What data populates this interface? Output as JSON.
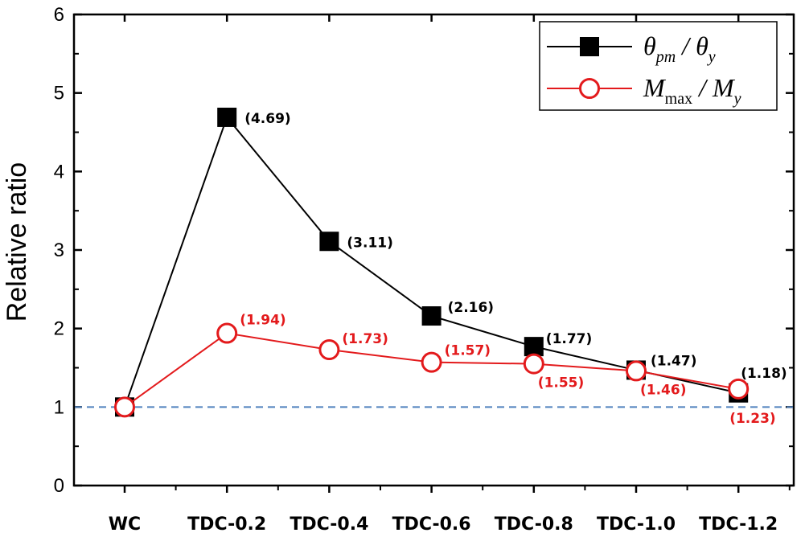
{
  "chart_data": {
    "type": "line",
    "title": "",
    "xlabel": "",
    "ylabel": "Relative ratio",
    "ylim": [
      0,
      6
    ],
    "yticks": [
      "0",
      "1",
      "2",
      "3",
      "4",
      "5",
      "6"
    ],
    "categories": [
      "WC",
      "TDC-0.2",
      "TDC-0.4",
      "TDC-0.6",
      "TDC-0.8",
      "TDC-1.0",
      "TDC-1.2"
    ],
    "grid": false,
    "legend_position": "top-right",
    "reference_line": {
      "y": 1.0,
      "style": "dashed",
      "color": "#4f81bd"
    },
    "series": [
      {
        "name": "θpm / θy",
        "legend": {
          "main": "θ",
          "sub": "pm",
          "sep": " / ",
          "main2": "θ",
          "sub2": "y"
        },
        "color": "#000000",
        "marker": "filled-square",
        "values": [
          1.0,
          4.69,
          3.11,
          2.16,
          1.77,
          1.47,
          1.18
        ],
        "labels": [
          "",
          "(4.69)",
          "(3.11)",
          "(2.16)",
          "(1.77)",
          "(1.47)",
          "(1.18)"
        ]
      },
      {
        "name": "Mmax / My",
        "legend": {
          "main": "M",
          "sub": "max",
          "sep": " / ",
          "main2": "M",
          "sub2": "y"
        },
        "color": "#e31a1c",
        "marker": "open-circle",
        "values": [
          1.0,
          1.94,
          1.73,
          1.57,
          1.55,
          1.46,
          1.23
        ],
        "labels": [
          "",
          "(1.94)",
          "(1.73)",
          "(1.57)",
          "(1.55)",
          "(1.46)",
          "(1.23)"
        ]
      }
    ]
  }
}
